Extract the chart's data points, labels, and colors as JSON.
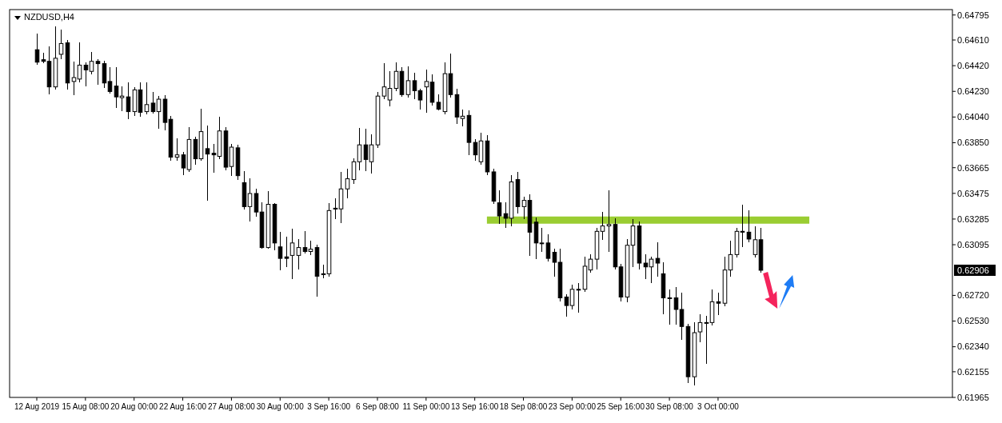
{
  "chart_data": {
    "type": "candlestick",
    "title": "NZDUSD,H4",
    "categories": [
      "12 Aug 2019",
      null,
      null,
      null,
      null,
      null,
      null,
      null,
      "15 Aug 08:00",
      null,
      null,
      null,
      null,
      null,
      null,
      null,
      "20 Aug 00:00",
      null,
      null,
      null,
      null,
      null,
      null,
      null,
      "22 Aug 16:00",
      null,
      null,
      null,
      null,
      null,
      null,
      null,
      "27 Aug 08:00",
      null,
      null,
      null,
      null,
      null,
      null,
      null,
      "30 Aug 00:00",
      null,
      null,
      null,
      null,
      null,
      null,
      null,
      "3 Sep 16:00",
      null,
      null,
      null,
      null,
      null,
      null,
      null,
      "6 Sep 08:00",
      null,
      null,
      null,
      null,
      null,
      null,
      null,
      "11 Sep 00:00",
      null,
      null,
      null,
      null,
      null,
      null,
      null,
      "13 Sep 16:00",
      null,
      null,
      null,
      null,
      null,
      null,
      null,
      "18 Sep 08:00",
      null,
      null,
      null,
      null,
      null,
      null,
      null,
      "23 Sep 00:00",
      null,
      null,
      null,
      null,
      null,
      null,
      null,
      "25 Sep 16:00",
      null,
      null,
      null,
      null,
      null,
      null,
      null,
      "30 Sep 08:00",
      null,
      null,
      null,
      null,
      null,
      null,
      null,
      "3 Oct 00:00",
      null,
      null,
      null,
      null,
      null,
      null,
      null,
      null,
      null,
      null,
      null,
      null,
      null,
      null,
      null,
      null,
      null,
      null,
      null,
      null,
      null,
      null,
      null,
      null,
      null,
      null,
      null,
      null,
      null,
      null,
      null,
      null,
      null,
      null,
      null,
      null,
      null,
      null
    ],
    "ohlc": [
      [
        0.64538,
        0.64652,
        0.64429,
        0.64446
      ],
      [
        0.64464,
        0.64509,
        0.64441,
        0.64452
      ],
      [
        0.64452,
        0.64561,
        0.64212,
        0.64263
      ],
      [
        0.64263,
        0.64704,
        0.64246,
        0.64475
      ],
      [
        0.64504,
        0.64681,
        0.64475,
        0.64584
      ],
      [
        0.64589,
        0.64607,
        0.64246,
        0.64292
      ],
      [
        0.64303,
        0.64446,
        0.64206,
        0.64332
      ],
      [
        0.64321,
        0.64589,
        0.64303,
        0.64424
      ],
      [
        0.64424,
        0.64441,
        0.64269,
        0.64389
      ],
      [
        0.64378,
        0.64515,
        0.64361,
        0.64452
      ],
      [
        0.64452,
        0.64464,
        0.64281,
        0.64435
      ],
      [
        0.64435,
        0.64452,
        0.64258,
        0.64292
      ],
      [
        0.64303,
        0.64406,
        0.64218,
        0.64229
      ],
      [
        0.64269,
        0.64406,
        0.64109,
        0.64189
      ],
      [
        0.64183,
        0.64263,
        0.64086,
        0.64195
      ],
      [
        0.64189,
        0.64292,
        0.64029,
        0.6408
      ],
      [
        0.6408,
        0.64258,
        0.64052,
        0.64241
      ],
      [
        0.64241,
        0.64292,
        0.64046,
        0.64075
      ],
      [
        0.6408,
        0.64292,
        0.64063,
        0.64132
      ],
      [
        0.64143,
        0.64223,
        0.64069,
        0.6408
      ],
      [
        0.6408,
        0.64189,
        0.6396,
        0.64172
      ],
      [
        0.64172,
        0.64195,
        0.63943,
        0.64
      ],
      [
        0.64023,
        0.64046,
        0.6372,
        0.63743
      ],
      [
        0.63743,
        0.6388,
        0.6372,
        0.6376
      ],
      [
        0.6376,
        0.63777,
        0.63617,
        0.63663
      ],
      [
        0.63651,
        0.6396,
        0.6364,
        0.63874
      ],
      [
        0.63874,
        0.63892,
        0.63691,
        0.63731
      ],
      [
        0.63731,
        0.64098,
        0.6372,
        0.63932
      ],
      [
        0.63806,
        0.63972,
        0.63423,
        0.63766
      ],
      [
        0.63772,
        0.63834,
        0.63634,
        0.6376
      ],
      [
        0.63749,
        0.64035,
        0.63731,
        0.63937
      ],
      [
        0.63937,
        0.6396,
        0.63651,
        0.63669
      ],
      [
        0.63674,
        0.63834,
        0.63606,
        0.63817
      ],
      [
        0.63812,
        0.63829,
        0.63577,
        0.63606
      ],
      [
        0.63554,
        0.63634,
        0.6336,
        0.63377
      ],
      [
        0.63377,
        0.63583,
        0.63274,
        0.63474
      ],
      [
        0.63474,
        0.63503,
        0.63308,
        0.63337
      ],
      [
        0.63337,
        0.63405,
        0.63068,
        0.63074
      ],
      [
        0.63074,
        0.63486,
        0.63068,
        0.63394
      ],
      [
        0.63394,
        0.634,
        0.63056,
        0.63108
      ],
      [
        0.63079,
        0.63188,
        0.62908,
        0.62994
      ],
      [
        0.63005,
        0.63148,
        0.62936,
        0.62994
      ],
      [
        0.63016,
        0.63211,
        0.62845,
        0.63108
      ],
      [
        0.63016,
        0.63132,
        0.62919,
        0.63074
      ],
      [
        0.63074,
        0.63194,
        0.63034,
        0.63045
      ],
      [
        0.63045,
        0.63119,
        0.63022,
        0.63062
      ],
      [
        0.63074,
        0.63091,
        0.62713,
        0.62862
      ],
      [
        0.62874,
        0.62942,
        0.62851,
        0.6288
      ],
      [
        0.6288,
        0.634,
        0.62862,
        0.63348
      ],
      [
        0.63365,
        0.63434,
        0.63291,
        0.6336
      ],
      [
        0.6336,
        0.63629,
        0.63262,
        0.63508
      ],
      [
        0.63508,
        0.63651,
        0.63445,
        0.63583
      ],
      [
        0.63577,
        0.63731,
        0.63548,
        0.63709
      ],
      [
        0.63709,
        0.63955,
        0.63651,
        0.63834
      ],
      [
        0.63834,
        0.63949,
        0.63646,
        0.63726
      ],
      [
        0.63709,
        0.63909,
        0.63629,
        0.63834
      ],
      [
        0.63834,
        0.64223,
        0.63817,
        0.64195
      ],
      [
        0.64195,
        0.64435,
        0.64178,
        0.64263
      ],
      [
        0.64166,
        0.64372,
        0.64126,
        0.64252
      ],
      [
        0.64252,
        0.64441,
        0.64235,
        0.64378
      ],
      [
        0.64378,
        0.64406,
        0.64195,
        0.64206
      ],
      [
        0.64206,
        0.64412,
        0.64189,
        0.64309
      ],
      [
        0.64309,
        0.64361,
        0.64178,
        0.64235
      ],
      [
        0.64235,
        0.64246,
        0.64098,
        0.64166
      ],
      [
        0.64263,
        0.64384,
        0.64075,
        0.64303
      ],
      [
        0.64298,
        0.64349,
        0.64132,
        0.64149
      ],
      [
        0.64149,
        0.64206,
        0.64092,
        0.64098
      ],
      [
        0.6408,
        0.64441,
        0.64063,
        0.64361
      ],
      [
        0.64361,
        0.64504,
        0.64189,
        0.64206
      ],
      [
        0.64206,
        0.64246,
        0.63995,
        0.6404
      ],
      [
        0.64029,
        0.64092,
        0.63977,
        0.64046
      ],
      [
        0.64052,
        0.64086,
        0.6376,
        0.63852
      ],
      [
        0.63852,
        0.63869,
        0.6372,
        0.6376
      ],
      [
        0.63709,
        0.6392,
        0.63691,
        0.63863
      ],
      [
        0.63863,
        0.63903,
        0.63617,
        0.63634
      ],
      [
        0.63634,
        0.63651,
        0.634,
        0.63417
      ],
      [
        0.63405,
        0.63491,
        0.63251,
        0.63308
      ],
      [
        0.63325,
        0.63405,
        0.63222,
        0.63291
      ],
      [
        0.63291,
        0.63606,
        0.63234,
        0.6356
      ],
      [
        0.63577,
        0.63629,
        0.63331,
        0.63377
      ],
      [
        0.63377,
        0.63445,
        0.63291,
        0.63423
      ],
      [
        0.63423,
        0.63463,
        0.63016,
        0.63188
      ],
      [
        0.63262,
        0.63291,
        0.62994,
        0.63108
      ],
      [
        0.63108,
        0.63217,
        0.63045,
        0.63108
      ],
      [
        0.63108,
        0.63165,
        0.62976,
        0.62994
      ],
      [
        0.63039,
        0.63062,
        0.62862,
        0.62965
      ],
      [
        0.62965,
        0.63062,
        0.62679,
        0.62702
      ],
      [
        0.62708,
        0.62725,
        0.62565,
        0.62645
      ],
      [
        0.62645,
        0.62793,
        0.62622,
        0.62765
      ],
      [
        0.62765,
        0.62805,
        0.62599,
        0.62765
      ],
      [
        0.62765,
        0.63005,
        0.62748,
        0.62936
      ],
      [
        0.62908,
        0.63022,
        0.62891,
        0.62988
      ],
      [
        0.62988,
        0.63217,
        0.62919,
        0.63194
      ],
      [
        0.63194,
        0.63331,
        0.63137,
        0.63234
      ],
      [
        0.63234,
        0.63491,
        0.63045,
        0.63245
      ],
      [
        0.63245,
        0.63285,
        0.62919,
        0.62931
      ],
      [
        0.62931,
        0.62948,
        0.62679,
        0.62708
      ],
      [
        0.62708,
        0.63132,
        0.62673,
        0.63091
      ],
      [
        0.63091,
        0.6328,
        0.62936,
        0.63234
      ],
      [
        0.63234,
        0.63262,
        0.62919,
        0.62959
      ],
      [
        0.62959,
        0.63022,
        0.62845,
        0.62931
      ],
      [
        0.62931,
        0.63005,
        0.62816,
        0.62988
      ],
      [
        0.62994,
        0.63108,
        0.62862,
        0.62959
      ],
      [
        0.6288,
        0.62959,
        0.62587,
        0.62702
      ],
      [
        0.62702,
        0.62759,
        0.62507,
        0.62702
      ],
      [
        0.62702,
        0.62776,
        0.62507,
        0.62616
      ],
      [
        0.62616,
        0.62736,
        0.62393,
        0.6249
      ],
      [
        0.6249,
        0.62507,
        0.62073,
        0.62118
      ],
      [
        0.62118,
        0.62519,
        0.62061,
        0.62444
      ],
      [
        0.6245,
        0.62576,
        0.62376,
        0.62519
      ],
      [
        0.62519,
        0.62565,
        0.62216,
        0.62519
      ],
      [
        0.62519,
        0.62759,
        0.62501,
        0.62673
      ],
      [
        0.62673,
        0.62736,
        0.62576,
        0.62662
      ],
      [
        0.62662,
        0.63005,
        0.62645,
        0.62908
      ],
      [
        0.62908,
        0.63119,
        0.62862,
        0.63022
      ],
      [
        0.63022,
        0.63217,
        0.63005,
        0.63194
      ],
      [
        0.63194,
        0.63388,
        0.63079,
        0.63188
      ],
      [
        0.63188,
        0.63348,
        0.63119,
        0.63137
      ],
      [
        0.63022,
        0.63228,
        0.63005,
        0.63132
      ],
      [
        0.63132,
        0.63217,
        0.62891,
        0.62906
      ],
      null,
      null,
      null,
      null,
      null,
      null,
      null,
      null,
      null,
      null,
      null,
      null,
      null,
      null,
      null,
      null,
      null,
      null,
      null,
      null,
      null,
      null,
      null,
      null,
      null,
      null,
      null,
      null,
      null,
      null,
      null
    ],
    "color": "#000000",
    "series": [
      {
        "type": "line",
        "color": "#9acd32",
        "values": [
          null,
          null,
          null,
          null,
          null,
          null,
          null,
          null,
          null,
          null,
          null,
          null,
          null,
          null,
          null,
          null,
          null,
          null,
          null,
          null,
          null,
          null,
          null,
          null,
          null,
          null,
          null,
          null,
          null,
          null,
          null,
          null,
          null,
          null,
          null,
          null,
          null,
          null,
          null,
          null,
          null,
          null,
          null,
          null,
          null,
          null,
          null,
          null,
          null,
          null,
          null,
          null,
          null,
          null,
          null,
          null,
          null,
          null,
          null,
          null,
          null,
          null,
          null,
          null,
          null,
          null,
          null,
          null,
          null,
          null,
          null,
          null,
          null,
          null,
          0.63277,
          0.63277,
          0.63277,
          0.63277,
          0.63277,
          0.63277,
          0.63277,
          0.63277,
          0.63277,
          0.63277,
          0.63277,
          0.63277,
          0.63277,
          0.63277,
          0.63277,
          0.63277,
          0.63277,
          0.63277,
          0.63277,
          0.63277,
          0.63277,
          0.63277,
          0.63277,
          0.63277,
          0.63277,
          0.63277,
          0.63277,
          0.63277,
          0.63277,
          0.63277,
          0.63277,
          0.63277,
          0.63277,
          0.63277,
          0.63277,
          0.63277,
          0.63277,
          0.63277,
          0.63277,
          0.63277,
          0.63277,
          0.63277,
          0.63277,
          0.63277,
          0.63277,
          0.63277,
          0.63277,
          0.63277,
          0.63277,
          0.63277,
          0.63277,
          0.63277,
          0.63277,
          0.63277,
          null,
          null,
          null,
          null,
          null,
          null,
          null,
          null,
          null,
          null,
          null,
          null,
          null,
          null,
          null,
          null,
          null,
          null,
          null,
          null,
          null,
          null,
          null
        ]
      }
    ],
    "ylim": [
      0.61965,
      0.64835
    ],
    "yticks": [
      0.64795,
      {
        "value": 0.6461,
        "label": "0.64610"
      },
      {
        "value": 0.6442,
        "label": "0.64420"
      },
      {
        "value": 0.6423,
        "label": "0.64230"
      },
      {
        "value": 0.6404,
        "label": "0.64040"
      },
      {
        "value": 0.6385,
        "label": "0.63850"
      },
      0.63665,
      0.63475,
      0.63285,
      0.63095,
      {
        "value": 0.6272,
        "label": "0.62720"
      },
      {
        "value": 0.6253,
        "label": "0.62530"
      },
      {
        "value": 0.6234,
        "label": "0.62340"
      },
      0.62155,
      0.61965
    ],
    "annotations": [
      "0.62906"
    ]
  }
}
